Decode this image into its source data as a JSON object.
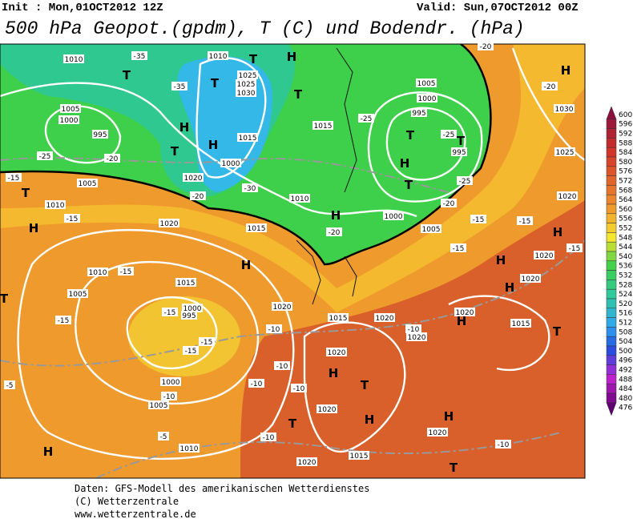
{
  "header": {
    "init": "Init : Mon,01OCT2012 12Z",
    "valid": "Valid: Sun,07OCT2012 00Z",
    "title": "500 hPa Geopot.(gpdm), T (C) und Bodendr. (hPa)"
  },
  "legend": {
    "values": [
      600,
      596,
      592,
      588,
      584,
      580,
      576,
      572,
      568,
      564,
      560,
      556,
      552,
      548,
      544,
      540,
      536,
      532,
      528,
      524,
      520,
      516,
      512,
      508,
      504,
      500,
      496,
      492,
      488,
      484,
      480,
      476
    ]
  },
  "map_labels": [
    "1010",
    "-35",
    "T",
    "1010",
    "T",
    "H",
    "-35",
    "T",
    "1025",
    "1025",
    "1030",
    "T",
    "1005",
    "1000",
    "995",
    "H",
    "T",
    "H",
    "1015",
    "1000",
    "-25",
    "-20",
    "1005",
    "-15",
    "T",
    "1010",
    "H",
    "1020",
    "-30",
    "-20",
    "1010",
    "1015",
    "-25",
    "1005",
    "1000",
    "995",
    "-25",
    "T",
    "995",
    "T",
    "H",
    "T",
    "-25",
    "1000",
    "-20",
    "1005",
    "H",
    "-20",
    "-15",
    "1020",
    "1015",
    "H",
    "1010",
    "-15",
    "1015",
    "1005",
    "1000",
    "995",
    "-15",
    "-15",
    "-15",
    "-15",
    "1020",
    "1015",
    "-10",
    "1020",
    "-10",
    "1020",
    "H",
    "1015",
    "1020",
    "H",
    "T",
    "-10",
    "1000",
    "-10",
    "1005",
    "-5",
    "-10",
    "-10",
    "1020",
    "H",
    "H",
    "1020",
    "T",
    "-5",
    "-10",
    "1010",
    "H",
    "1015",
    "1020",
    "T",
    "-10",
    "1030",
    "H",
    "1025",
    "-20",
    "-20",
    "T",
    "1020",
    "-15",
    "-15",
    "H",
    "-15",
    "1020",
    "H",
    "1020",
    "H",
    "-15",
    "1020",
    "T"
  ],
  "footer": {
    "lines": [
      "Daten: GFS-Modell des amerikanischen Wetterdienstes",
      "(C) Wetterzentrale",
      "www.wetterzentrale.de"
    ]
  }
}
